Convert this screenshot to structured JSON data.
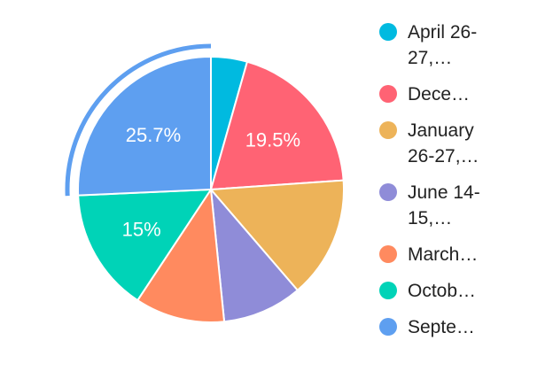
{
  "chart_data": {
    "type": "pie",
    "start_angle_deg": 0,
    "direction": "clockwise",
    "slices": [
      {
        "label": "April 26-27,…",
        "value": 4.4,
        "color": "#00bae0",
        "data_label": ""
      },
      {
        "label": "Dece…",
        "value": 19.5,
        "color": "#ff6374",
        "data_label": "19.5%"
      },
      {
        "label": "January 26-27,…",
        "value": 14.8,
        "color": "#edb359",
        "data_label": ""
      },
      {
        "label": "June 14-15,…",
        "value": 9.7,
        "color": "#8f8cd8",
        "data_label": ""
      },
      {
        "label": "March…",
        "value": 10.9,
        "color": "#ff8a5f",
        "data_label": ""
      },
      {
        "label": "Octob…",
        "value": 15,
        "color": "#00d3b7",
        "data_label": "15%"
      },
      {
        "label": "Septe…",
        "value": 25.7,
        "color": "#5e9ff0",
        "data_label": "25.7%"
      }
    ],
    "highlighted_slice": "Septe…",
    "legend_position": "right"
  }
}
